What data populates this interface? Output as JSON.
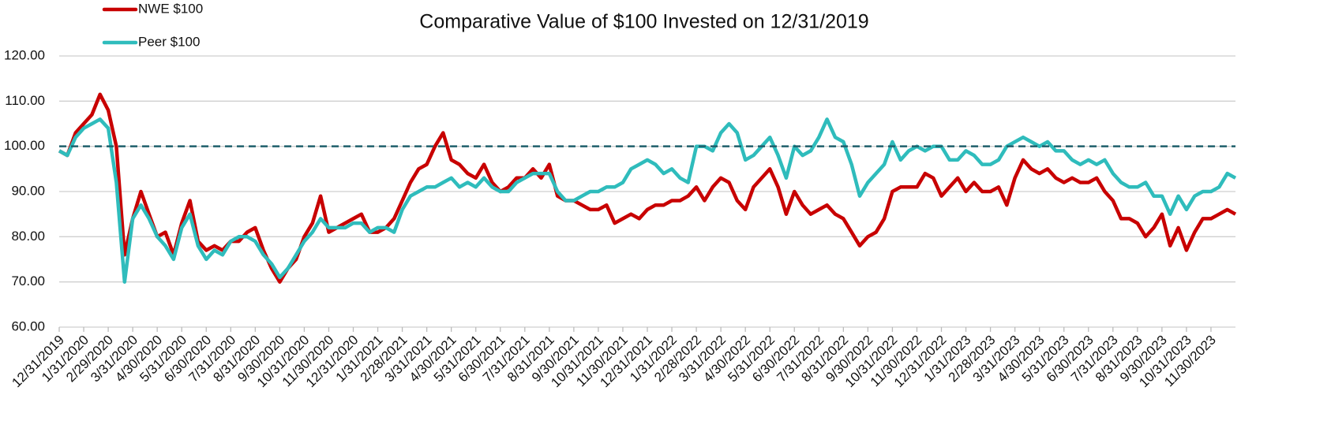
{
  "chart_data": {
    "type": "line",
    "title": "Comparative Value of $100 Invested on 12/31/2019",
    "legend": "top-left",
    "grid": true,
    "reference_line": 100,
    "ylim": [
      60,
      120
    ],
    "yticks": [
      {
        "value": 60,
        "label": "60.00"
      },
      {
        "value": 70,
        "label": "70.00"
      },
      {
        "value": 80,
        "label": "80.00"
      },
      {
        "value": 90,
        "label": "90.00"
      },
      {
        "value": 100,
        "label": "100.00"
      },
      {
        "value": 110,
        "label": "110.00"
      },
      {
        "value": 120,
        "label": "120.00"
      }
    ],
    "categories": [
      "12/31/2019",
      null,
      null,
      "1/31/2020",
      null,
      null,
      "2/29/2020",
      null,
      null,
      "3/31/2020",
      null,
      null,
      "4/30/2020",
      null,
      null,
      "5/31/2020",
      null,
      null,
      "6/30/2020",
      null,
      null,
      "7/31/2020",
      null,
      null,
      "8/31/2020",
      null,
      null,
      "9/30/2020",
      null,
      null,
      "10/31/2020",
      null,
      null,
      "11/30/2020",
      null,
      null,
      "12/31/2020",
      null,
      null,
      "1/31/2021",
      null,
      null,
      "2/28/2021",
      null,
      null,
      "3/31/2021",
      null,
      null,
      "4/30/2021",
      null,
      null,
      "5/31/2021",
      null,
      null,
      "6/30/2021",
      null,
      null,
      "7/31/2021",
      null,
      null,
      "8/31/2021",
      null,
      null,
      "9/30/2021",
      null,
      null,
      "10/31/2021",
      null,
      null,
      "11/30/2021",
      null,
      null,
      "12/31/2021",
      null,
      null,
      "1/31/2022",
      null,
      null,
      "2/28/2022",
      null,
      null,
      "3/31/2022",
      null,
      null,
      "4/30/2022",
      null,
      null,
      "5/31/2022",
      null,
      null,
      "6/30/2022",
      null,
      null,
      "7/31/2022",
      null,
      null,
      "8/31/2022",
      null,
      null,
      "9/30/2022",
      null,
      null,
      "10/31/2022",
      null,
      null,
      "11/30/2022",
      null,
      null,
      "12/31/2022",
      null,
      null,
      "1/31/2023",
      null,
      null,
      "2/28/2023",
      null,
      null,
      "3/31/2023",
      null,
      null,
      "4/30/2023",
      null,
      null,
      "5/31/2023",
      null,
      null,
      "6/30/2023",
      null,
      null,
      "7/31/2023",
      null,
      null,
      "8/31/2023",
      null,
      null,
      "9/30/2023",
      null,
      null,
      "10/31/2023",
      null,
      null,
      "11/30/2023",
      null,
      null,
      null
    ],
    "series": [
      {
        "name": "NWE $100",
        "color": "#c80000",
        "values": [
          99,
          98,
          103,
          105,
          107,
          111.5,
          108,
          100,
          76,
          84,
          90,
          85,
          80,
          81,
          76,
          83,
          88,
          79,
          77,
          78,
          77,
          79,
          79,
          81,
          82,
          77,
          73,
          70,
          73,
          75,
          80,
          83,
          89,
          81,
          82,
          83,
          84,
          85,
          81,
          81,
          82,
          84,
          88,
          92,
          95,
          96,
          100,
          103,
          97,
          96,
          94,
          93,
          96,
          92,
          90,
          91,
          93,
          93,
          95,
          93,
          96,
          89,
          88,
          88,
          87,
          86,
          86,
          87,
          83,
          84,
          85,
          84,
          86,
          87,
          87,
          88,
          88,
          89,
          91,
          88,
          91,
          93,
          92,
          88,
          86,
          91,
          93,
          95,
          91,
          85,
          90,
          87,
          85,
          86,
          87,
          85,
          84,
          81,
          78,
          80,
          81,
          84,
          90,
          91,
          91,
          91,
          94,
          93,
          89,
          91,
          93,
          90,
          92,
          90,
          90,
          91,
          87,
          93,
          97,
          95,
          94,
          95,
          93,
          92,
          93,
          92,
          92,
          93,
          90,
          88,
          84,
          84,
          83,
          80,
          82,
          85,
          78,
          82,
          77,
          81,
          84,
          84,
          85,
          86,
          85
        ]
      },
      {
        "name": "Peer $100",
        "color": "#2fbcbc",
        "values": [
          99,
          98,
          102,
          104,
          105,
          106,
          104,
          92,
          70,
          84,
          87,
          84,
          80,
          78,
          75,
          82,
          85,
          78,
          75,
          77,
          76,
          79,
          80,
          80,
          79,
          76,
          74,
          71,
          73,
          76,
          79,
          81,
          84,
          82,
          82,
          82,
          83,
          83,
          81,
          82,
          82,
          81,
          86,
          89,
          90,
          91,
          91,
          92,
          93,
          91,
          92,
          91,
          93,
          91,
          90,
          90,
          92,
          93,
          94,
          94,
          94,
          90,
          88,
          88,
          89,
          90,
          90,
          91,
          91,
          92,
          95,
          96,
          97,
          96,
          94,
          95,
          93,
          92,
          100,
          100,
          99,
          103,
          105,
          103,
          97,
          98,
          100,
          102,
          98,
          93,
          100,
          98,
          99,
          102,
          106,
          102,
          101,
          96,
          89,
          92,
          94,
          96,
          101,
          97,
          99,
          100,
          99,
          100,
          100,
          97,
          97,
          99,
          98,
          96,
          96,
          97,
          100,
          101,
          102,
          101,
          100,
          101,
          99,
          99,
          97,
          96,
          97,
          96,
          97,
          94,
          92,
          91,
          91,
          92,
          89,
          89,
          85,
          89,
          86,
          89,
          90,
          90,
          91,
          94,
          93
        ]
      }
    ]
  }
}
